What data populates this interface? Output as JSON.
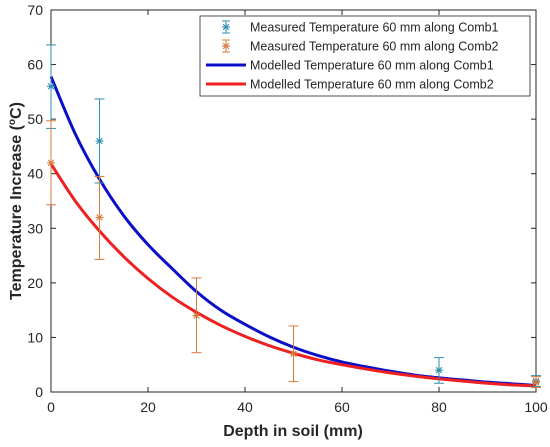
{
  "chart_data": {
    "type": "line",
    "xlabel": "Depth in soil (mm)",
    "ylabel": "Temperature Increase (",
    "ylabel_unit_sup": "o",
    "ylabel_unit": "C)",
    "xlim": [
      0,
      100
    ],
    "ylim": [
      0,
      70
    ],
    "xticks": [
      0,
      20,
      40,
      60,
      80,
      100
    ],
    "yticks": [
      0,
      10,
      20,
      30,
      40,
      50,
      60,
      70
    ],
    "grid": false,
    "legend_position": "top-right",
    "measured_series": [
      {
        "name": "Measured Temperature 60 mm along Comb1",
        "color": "#2e8fb0",
        "points": [
          {
            "x": 0,
            "y": 56,
            "lower": 48.3,
            "upper": 63.6
          },
          {
            "x": 10,
            "y": 46,
            "lower": 38.3,
            "upper": 53.7
          },
          {
            "x": 80,
            "y": 4,
            "lower": 1.6,
            "upper": 6.3
          },
          {
            "x": 100,
            "y": 2,
            "lower": 1.0,
            "upper": 3.0
          }
        ]
      },
      {
        "name": "Measured Temperature 60 mm along Comb2",
        "color": "#d9793c",
        "points": [
          {
            "x": 0,
            "y": 42,
            "lower": 34.3,
            "upper": 49.7
          },
          {
            "x": 10,
            "y": 32,
            "lower": 24.3,
            "upper": 39.5
          },
          {
            "x": 30,
            "y": 14,
            "lower": 7.2,
            "upper": 20.9
          },
          {
            "x": 50,
            "y": 7,
            "lower": 1.9,
            "upper": 12.1
          },
          {
            "x": 100,
            "y": 1.8,
            "lower": 0.8,
            "upper": 2.8
          }
        ]
      }
    ],
    "model_series": [
      {
        "name": "Modelled Temperature 60 mm along Comb1",
        "color": "#0a10c8",
        "x": [
          0,
          5,
          10,
          15,
          20,
          25,
          30,
          35,
          40,
          45,
          50,
          55,
          60,
          65,
          70,
          75,
          80,
          85,
          90,
          95,
          100
        ],
        "y": [
          57.8,
          47.3,
          39.0,
          32.3,
          27.0,
          22.6,
          18.4,
          15.0,
          12.4,
          10.1,
          8.2,
          6.7,
          5.5,
          4.6,
          3.8,
          3.1,
          2.6,
          2.2,
          1.8,
          1.5,
          1.2
        ]
      },
      {
        "name": "Modelled Temperature 60 mm along Comb2",
        "color": "#ee2020",
        "x": [
          0,
          5,
          10,
          15,
          20,
          25,
          30,
          35,
          40,
          45,
          50,
          55,
          60,
          65,
          70,
          75,
          80,
          85,
          90,
          95,
          100
        ],
        "y": [
          41.8,
          35.0,
          29.5,
          24.8,
          20.8,
          17.4,
          14.6,
          12.2,
          10.2,
          8.5,
          7.1,
          5.9,
          5.0,
          4.2,
          3.5,
          2.9,
          2.4,
          2.0,
          1.6,
          1.3,
          1.1
        ]
      }
    ]
  }
}
